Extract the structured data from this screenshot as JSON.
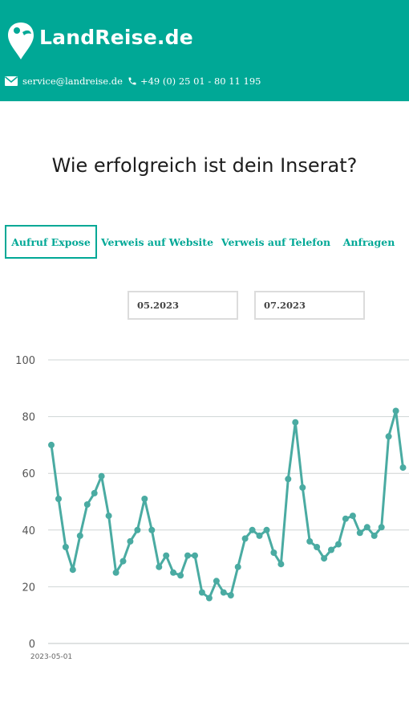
{
  "header": {
    "brand": "LandReise.de",
    "email": "service@landreise.de",
    "phone": "+49 (0) 25 01 - 80 11 195",
    "bg_color": "#00a896"
  },
  "title": "Wie erfolgreich ist dein Inserat?",
  "tabs": [
    {
      "label": "Aufruf Expose",
      "active": true
    },
    {
      "label": "Verweis auf Website",
      "active": false
    },
    {
      "label": "Verweis auf Telefon",
      "active": false
    },
    {
      "label": "Anfragen",
      "active": false
    }
  ],
  "date_range": {
    "from": "05.2023",
    "to": "07.2023"
  },
  "chart_data": {
    "type": "line",
    "x_start_label": "2023-05-01",
    "xlabel": "",
    "ylabel": "",
    "ylim": [
      0,
      100
    ],
    "yticks": [
      0,
      20,
      40,
      60,
      80,
      100
    ],
    "grid": true,
    "color": "#4aaba2",
    "series": [
      {
        "values": [
          70,
          51,
          34,
          26,
          38,
          49,
          53,
          59,
          45,
          25,
          29,
          36,
          40,
          51,
          40,
          27,
          31,
          25,
          24,
          31,
          31,
          18,
          16,
          22,
          18,
          17,
          27,
          37,
          40,
          38,
          40,
          32,
          28,
          58,
          78,
          55,
          36,
          34,
          30,
          33,
          35,
          44,
          45,
          39,
          41,
          38,
          41,
          73,
          82,
          62
        ]
      }
    ]
  }
}
